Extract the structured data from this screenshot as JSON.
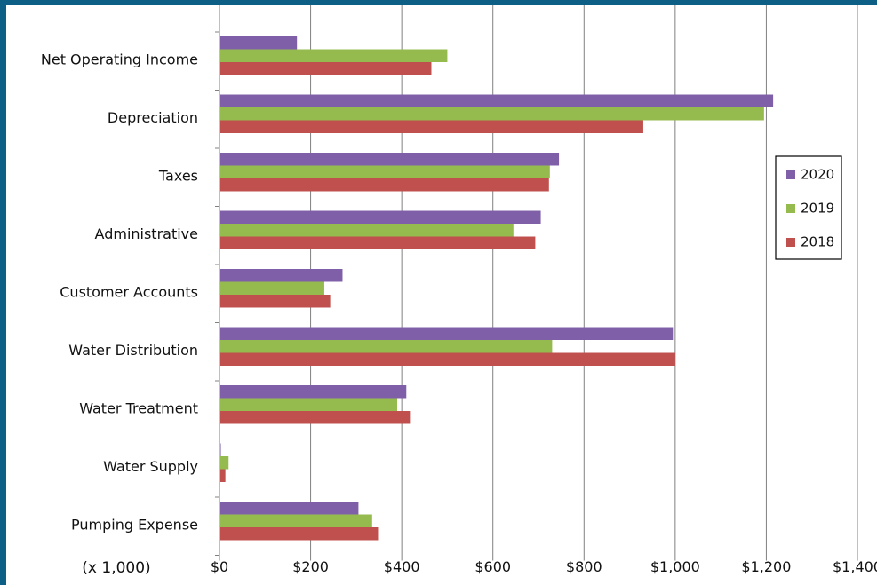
{
  "chart_data": {
    "type": "bar",
    "orientation": "horizontal",
    "categories": [
      "Net Operating Income",
      "Depreciation",
      "Taxes",
      "Administrative",
      "Customer Accounts",
      "Water Distribution",
      "Water Treatment",
      "Water Supply",
      "Pumping Expense"
    ],
    "series": [
      {
        "name": "2020",
        "color": "#7f60a8",
        "values": [
          170,
          1215,
          745,
          705,
          270,
          995,
          410,
          3,
          305
        ]
      },
      {
        "name": "2019",
        "color": "#95bb4f",
        "values": [
          500,
          1195,
          725,
          645,
          230,
          730,
          390,
          20,
          335
        ]
      },
      {
        "name": "2018",
        "color": "#c0504d",
        "values": [
          465,
          930,
          723,
          693,
          243,
          1000,
          418,
          13,
          348
        ]
      }
    ],
    "xlim": [
      0,
      1400
    ],
    "x_ticks": [
      "$0",
      "$200",
      "$400",
      "$600",
      "$800",
      "$1,000",
      "$1,200",
      "$1,400"
    ],
    "unit_label": "(x 1,000)",
    "grid": "vertical",
    "legend_position": "right"
  }
}
